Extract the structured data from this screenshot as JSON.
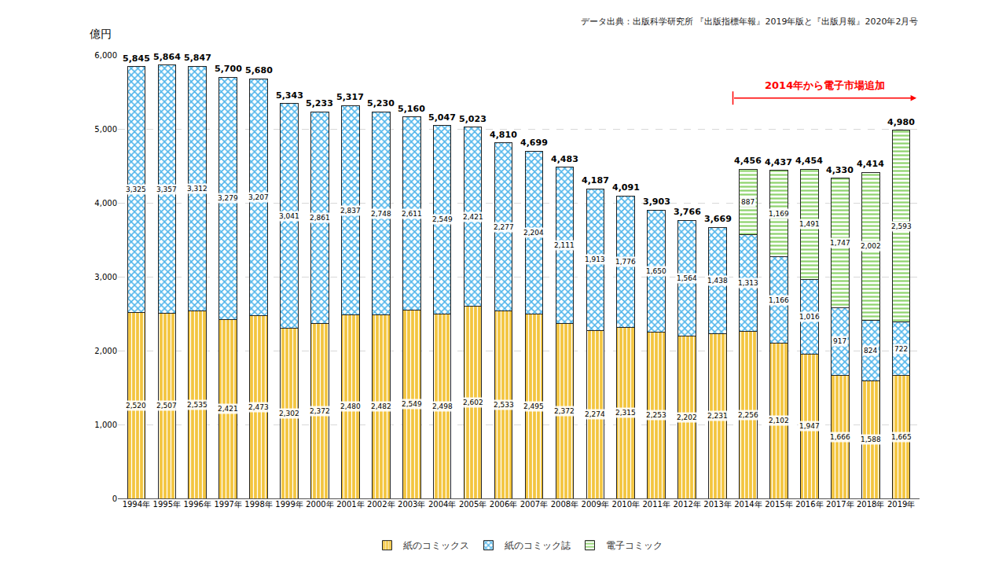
{
  "chart_data": {
    "type": "bar",
    "stacked": true,
    "data_labels": true,
    "grid": true,
    "legend": "bottom",
    "source": "データ出典：出版科学研究所 『出版指標年報』2019年版と『出版月報』2020年2月号",
    "ylabel": "億円",
    "annotations": [
      {
        "text": "2014年から電子市場追加",
        "color": "#ff0000"
      }
    ],
    "categories": [
      "1994年",
      "1995年",
      "1996年",
      "1997年",
      "1998年",
      "1999年",
      "2000年",
      "2001年",
      "2002年",
      "2003年",
      "2004年",
      "2005年",
      "2006年",
      "2007年",
      "2008年",
      "2009年",
      "2010年",
      "2011年",
      "2012年",
      "2013年",
      "2014年",
      "2015年",
      "2016年",
      "2017年",
      "2018年",
      "2019年"
    ],
    "series": [
      {
        "name": "紙のコミックス",
        "color": "#f3c53f",
        "values": [
          2520,
          2507,
          2535,
          2421,
          2473,
          2302,
          2372,
          2480,
          2482,
          2549,
          2498,
          2602,
          2533,
          2495,
          2372,
          2274,
          2315,
          2253,
          2202,
          2231,
          2256,
          2102,
          1947,
          1666,
          1588,
          1665
        ],
        "value_labels": [
          "2,520",
          "2,507",
          "2,535",
          "2,421",
          "2,473",
          "2,302",
          "2,372",
          "2,480",
          "2,482",
          "2,549",
          "2,498",
          "2,602",
          "2,533",
          "2,495",
          "2,372",
          "2,274",
          "2,315",
          "2,253",
          "2,202",
          "2,231",
          "2,256",
          "2,102",
          "1,947",
          "1,666",
          "1,588",
          "1,665"
        ]
      },
      {
        "name": "紙のコミック誌",
        "color": "#4db4ea",
        "values": [
          3325,
          3357,
          3312,
          3279,
          3207,
          3041,
          2861,
          2837,
          2748,
          2611,
          2549,
          2421,
          2277,
          2204,
          2111,
          1913,
          1776,
          1650,
          1564,
          1438,
          1313,
          1166,
          1016,
          917,
          824,
          722
        ],
        "value_labels": [
          "3,325",
          "3,357",
          "3,312",
          "3,279",
          "3,207",
          "3,041",
          "2,861",
          "2,837",
          "2,748",
          "2,611",
          "2,549",
          "2,421",
          "2,277",
          "2,204",
          "2,111",
          "1,913",
          "1,776",
          "1,650",
          "1,564",
          "1,438",
          "1,313",
          "1,166",
          "1,016",
          "917",
          "824",
          "722"
        ]
      },
      {
        "name": "電子コミック",
        "color": "#8fd36e",
        "values": [
          null,
          null,
          null,
          null,
          null,
          null,
          null,
          null,
          null,
          null,
          null,
          null,
          null,
          null,
          null,
          null,
          null,
          null,
          null,
          null,
          887,
          1169,
          1491,
          1747,
          2002,
          2593
        ],
        "value_labels": [
          null,
          null,
          null,
          null,
          null,
          null,
          null,
          null,
          null,
          null,
          null,
          null,
          null,
          null,
          null,
          null,
          null,
          null,
          null,
          null,
          "887",
          "1,169",
          "1,491",
          "1,747",
          "2,002",
          "2,593"
        ]
      }
    ],
    "totals": {
      "values": [
        5845,
        5864,
        5847,
        5700,
        5680,
        5343,
        5233,
        5317,
        5230,
        5160,
        5047,
        5023,
        4810,
        4699,
        4483,
        4187,
        4091,
        3903,
        3766,
        3669,
        4456,
        4437,
        4454,
        4330,
        4414,
        4980
      ],
      "value_labels": [
        "5,845",
        "5,864",
        "5,847",
        "5,700",
        "5,680",
        "5,343",
        "5,233",
        "5,317",
        "5,230",
        "5,160",
        "5,047",
        "5,023",
        "4,810",
        "4,699",
        "4,483",
        "4,187",
        "4,091",
        "3,903",
        "3,766",
        "3,669",
        "4,456",
        "4,437",
        "4,454",
        "4,330",
        "4,414",
        "4,980"
      ]
    },
    "ylim": [
      0,
      6000
    ],
    "yticks": [
      0,
      {
        "value": 1000,
        "label": "1,000"
      },
      {
        "value": 2000,
        "label": "2,000"
      },
      {
        "value": 3000,
        "label": "3,000"
      },
      {
        "value": 4000,
        "label": "4,000"
      },
      {
        "value": 5000,
        "label": "5,000"
      },
      {
        "value": 6000,
        "label": "6,000"
      }
    ]
  }
}
